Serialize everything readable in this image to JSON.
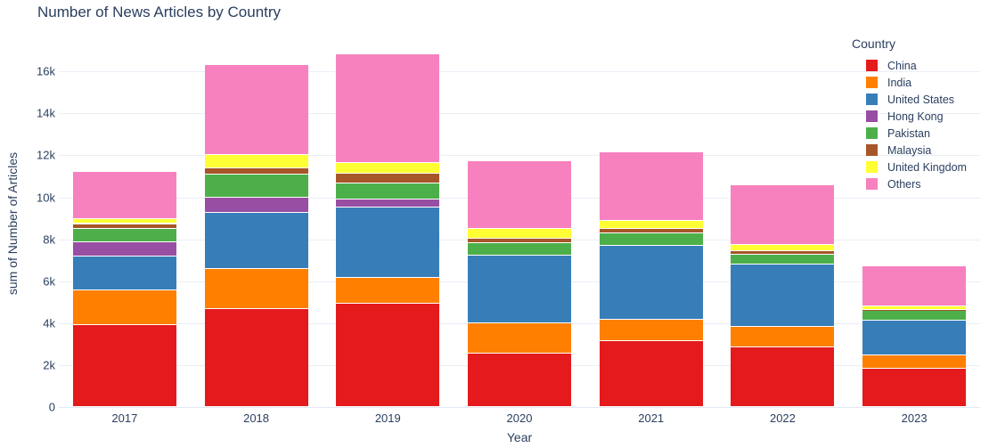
{
  "title": "Number of News Articles by Country",
  "chart_data": {
    "type": "bar",
    "stacked": true,
    "title": "Number of News Articles by Country",
    "xlabel": "Year",
    "ylabel": "sum of Number of Articles",
    "categories": [
      "2017",
      "2018",
      "2019",
      "2020",
      "2021",
      "2022",
      "2023"
    ],
    "series": [
      {
        "name": "China",
        "color": "#e41a1c",
        "values": [
          3950,
          4700,
          4950,
          2550,
          3150,
          2850,
          1850
        ]
      },
      {
        "name": "India",
        "color": "#ff7f00",
        "values": [
          1650,
          1900,
          1250,
          1450,
          1050,
          1000,
          650
        ]
      },
      {
        "name": "United States",
        "color": "#377eb8",
        "values": [
          1600,
          2700,
          3350,
          3250,
          3500,
          2950,
          1650
        ]
      },
      {
        "name": "Hong Kong",
        "color": "#984ea3",
        "values": [
          700,
          700,
          350,
          0,
          0,
          0,
          0
        ]
      },
      {
        "name": "Pakistan",
        "color": "#4daf4a",
        "values": [
          600,
          1100,
          800,
          600,
          600,
          500,
          450
        ]
      },
      {
        "name": "Malaysia",
        "color": "#a65628",
        "values": [
          250,
          300,
          450,
          200,
          200,
          150,
          50
        ]
      },
      {
        "name": "United Kingdom",
        "color": "#ffff33",
        "values": [
          250,
          650,
          500,
          450,
          400,
          300,
          150
        ]
      },
      {
        "name": "Others",
        "color": "#f781bf",
        "values": [
          2250,
          4300,
          5200,
          3250,
          3250,
          2850,
          1950
        ]
      }
    ],
    "ylim": [
      0,
      17500
    ],
    "yticks": [
      0,
      2000,
      4000,
      6000,
      8000,
      10000,
      12000,
      14000,
      16000
    ],
    "ytick_labels": [
      "0",
      "2k",
      "4k",
      "6k",
      "8k",
      "10k",
      "12k",
      "14k",
      "16k"
    ],
    "grid": true,
    "legend_title": "Country",
    "legend_position": "top-right-inside",
    "text_color": "#2a3f5f",
    "grid_color": "#e9eef6",
    "background_color": "#ffffff"
  }
}
